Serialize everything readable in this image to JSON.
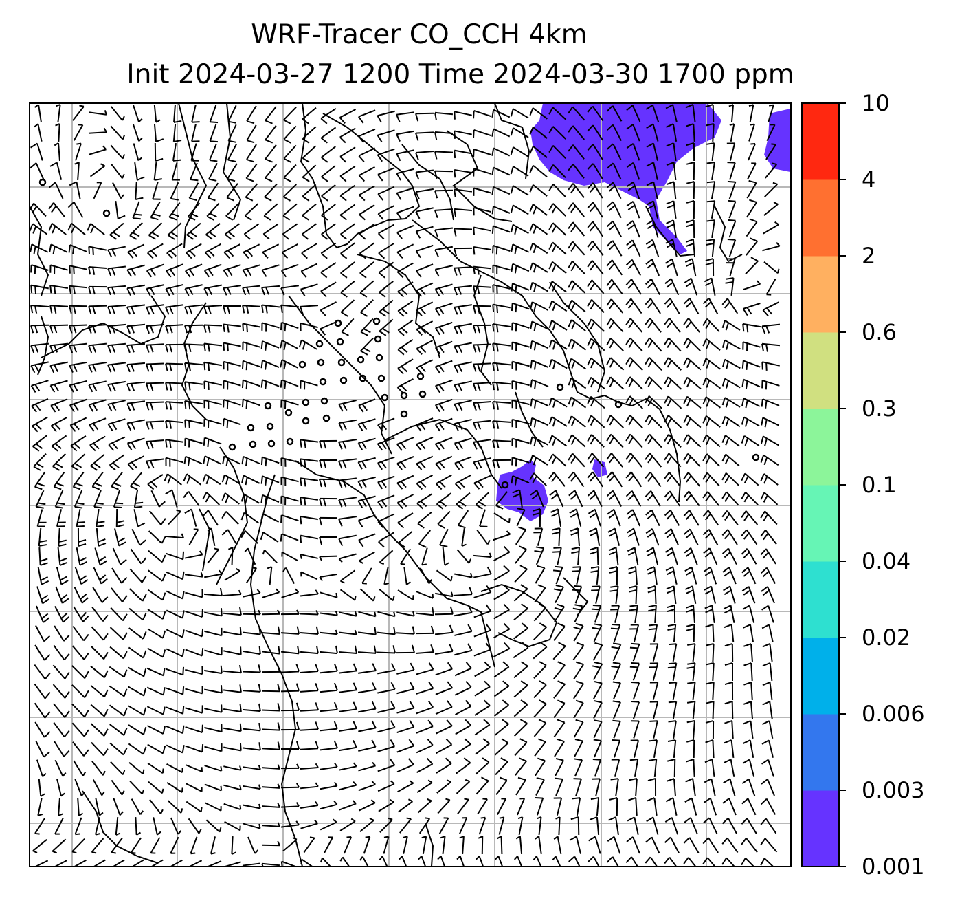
{
  "title": {
    "line1": "WRF-Tracer CO_CCH 4km",
    "line2": "Init 2024-03-27 1200 Time 2024-03-30 1700 ppm"
  },
  "colorbar": {
    "levels": [
      "0.001",
      "0.003",
      "0.006",
      "0.02",
      "0.04",
      "0.1",
      "0.3",
      "0.6",
      "2",
      "4",
      "10"
    ],
    "colors": [
      "#6633ff",
      "#3377ee",
      "#00b0ea",
      "#2ee0d0",
      "#66f5b5",
      "#8cf59a",
      "#d0e080",
      "#ffb060",
      "#ff7030",
      "#ff2810"
    ]
  },
  "map": {
    "tracer_color": "#6633ff",
    "grid_color": "#b8b8b8",
    "barb_color": "#000000"
  }
}
